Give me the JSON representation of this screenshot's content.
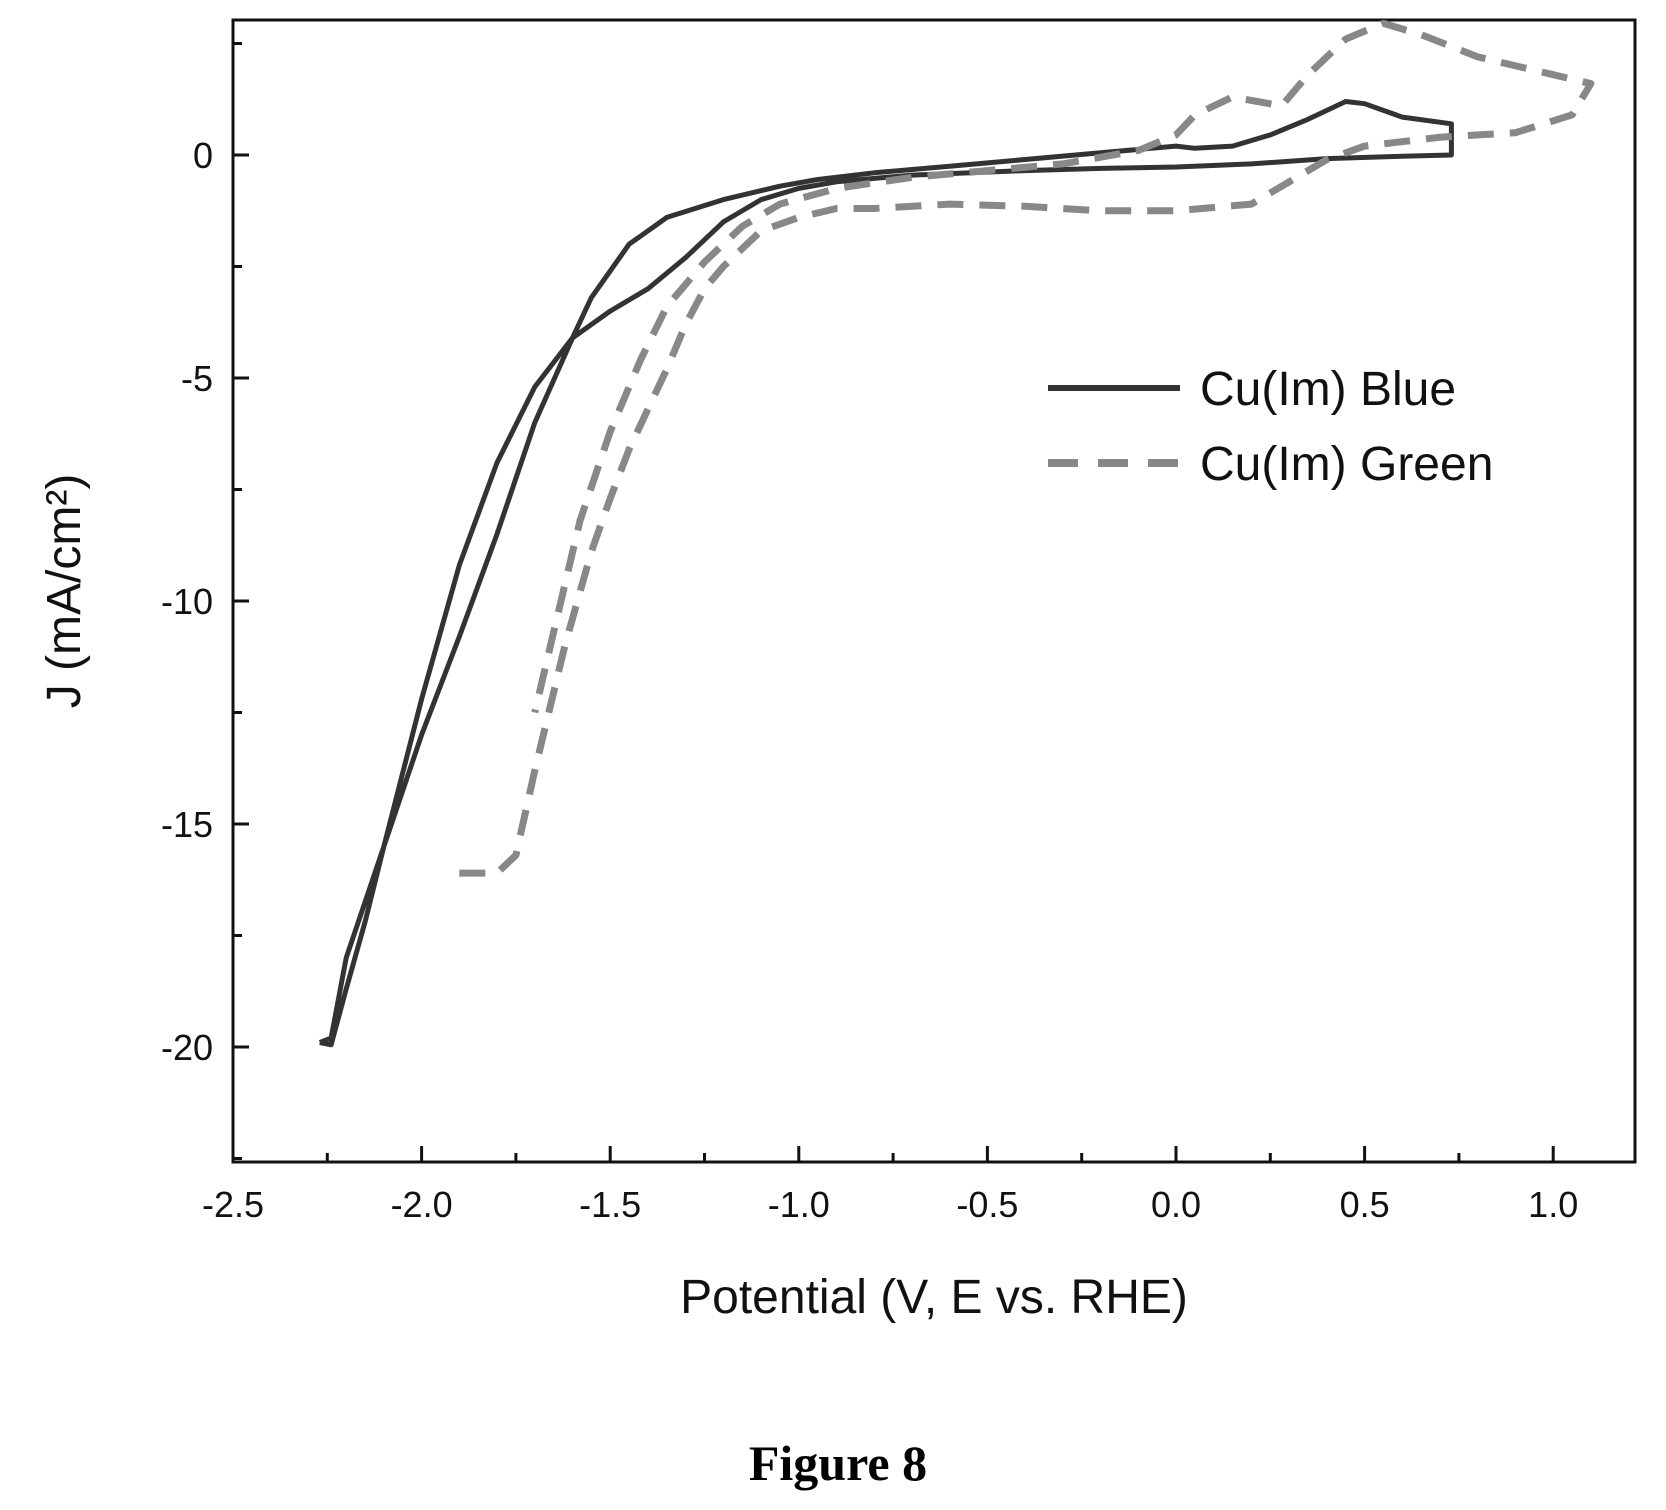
{
  "chart_data": {
    "type": "line",
    "xlabel": "Potential (V, E vs. RHE)",
    "ylabel": "J (mA/cm²)",
    "xlim": [
      -2.5,
      1.25
    ],
    "ylim": [
      -22.5,
      2.9
    ],
    "x_ticks": [
      "-2.5",
      "-2.0",
      "-1.5",
      "-1.0",
      "-0.5",
      "0.0",
      "0.5",
      "1.0"
    ],
    "y_ticks": [
      "0",
      "-5",
      "-10",
      "-15",
      "-20"
    ],
    "grid": false,
    "legend_position": "right",
    "series": [
      {
        "name": "Cu(Im) Blue",
        "style": "solid",
        "color": "#333333",
        "points": [
          [
            -2.27,
            -19.9
          ],
          [
            -2.24,
            -19.95
          ],
          [
            -2.2,
            -18.7
          ],
          [
            -2.15,
            -17.2
          ],
          [
            -2.1,
            -15.5
          ],
          [
            -2.0,
            -12.2
          ],
          [
            -1.9,
            -9.2
          ],
          [
            -1.8,
            -6.9
          ],
          [
            -1.7,
            -5.2
          ],
          [
            -1.6,
            -4.1
          ],
          [
            -1.5,
            -3.5
          ],
          [
            -1.4,
            -3.0
          ],
          [
            -1.3,
            -2.3
          ],
          [
            -1.2,
            -1.5
          ],
          [
            -1.1,
            -1.0
          ],
          [
            -1.0,
            -0.75
          ],
          [
            -0.9,
            -0.6
          ],
          [
            -0.7,
            -0.45
          ],
          [
            -0.4,
            -0.35
          ],
          [
            -0.2,
            -0.3
          ],
          [
            0.0,
            -0.27
          ],
          [
            0.2,
            -0.2
          ],
          [
            0.4,
            -0.08
          ],
          [
            0.6,
            -0.03
          ],
          [
            0.73,
            0.0
          ],
          [
            0.73,
            0.7
          ],
          [
            0.6,
            0.85
          ],
          [
            0.5,
            1.15
          ],
          [
            0.45,
            1.2
          ],
          [
            0.35,
            0.8
          ],
          [
            0.25,
            0.45
          ],
          [
            0.15,
            0.2
          ],
          [
            0.05,
            0.15
          ],
          [
            0.0,
            0.2
          ],
          [
            -0.2,
            0.05
          ],
          [
            -0.4,
            -0.1
          ],
          [
            -0.6,
            -0.25
          ],
          [
            -0.8,
            -0.4
          ],
          [
            -0.95,
            -0.55
          ],
          [
            -1.05,
            -0.7
          ],
          [
            -1.2,
            -1.0
          ],
          [
            -1.35,
            -1.4
          ],
          [
            -1.45,
            -2.0
          ],
          [
            -1.5,
            -2.6
          ],
          [
            -1.55,
            -3.2
          ],
          [
            -1.6,
            -4.1
          ],
          [
            -1.7,
            -6.0
          ],
          [
            -1.8,
            -8.5
          ],
          [
            -1.9,
            -10.8
          ],
          [
            -2.0,
            -13.0
          ],
          [
            -2.1,
            -15.5
          ],
          [
            -2.2,
            -18.0
          ],
          [
            -2.24,
            -19.8
          ],
          [
            -2.27,
            -19.9
          ]
        ]
      },
      {
        "name": "Cu(Im) Green",
        "style": "dashed",
        "color": "#888888",
        "points": [
          [
            -1.9,
            -16.1
          ],
          [
            -1.8,
            -16.1
          ],
          [
            -1.75,
            -15.7
          ],
          [
            -1.7,
            -13.8
          ],
          [
            -1.62,
            -11.0
          ],
          [
            -1.55,
            -8.9
          ],
          [
            -1.5,
            -7.7
          ],
          [
            -1.45,
            -6.6
          ],
          [
            -1.4,
            -5.7
          ],
          [
            -1.35,
            -4.8
          ],
          [
            -1.3,
            -3.8
          ],
          [
            -1.25,
            -3.0
          ],
          [
            -1.2,
            -2.5
          ],
          [
            -1.1,
            -1.7
          ],
          [
            -1.0,
            -1.4
          ],
          [
            -0.9,
            -1.2
          ],
          [
            -0.8,
            -1.2
          ],
          [
            -0.6,
            -1.1
          ],
          [
            -0.4,
            -1.15
          ],
          [
            -0.2,
            -1.25
          ],
          [
            0.0,
            -1.25
          ],
          [
            0.2,
            -1.1
          ],
          [
            0.3,
            -0.6
          ],
          [
            0.4,
            -0.1
          ],
          [
            0.5,
            0.2
          ],
          [
            0.7,
            0.4
          ],
          [
            0.9,
            0.5
          ],
          [
            1.05,
            0.9
          ],
          [
            1.1,
            1.6
          ],
          [
            1.0,
            1.8
          ],
          [
            0.8,
            2.2
          ],
          [
            0.65,
            2.7
          ],
          [
            0.55,
            2.95
          ],
          [
            0.45,
            2.6
          ],
          [
            0.35,
            1.8
          ],
          [
            0.28,
            1.1
          ],
          [
            0.15,
            1.3
          ],
          [
            0.05,
            0.9
          ],
          [
            0.0,
            0.45
          ],
          [
            -0.1,
            0.1
          ],
          [
            -0.3,
            -0.2
          ],
          [
            -0.5,
            -0.35
          ],
          [
            -0.7,
            -0.5
          ],
          [
            -0.9,
            -0.75
          ],
          [
            -1.05,
            -1.1
          ],
          [
            -1.15,
            -1.6
          ],
          [
            -1.25,
            -2.4
          ],
          [
            -1.35,
            -3.4
          ],
          [
            -1.42,
            -4.6
          ],
          [
            -1.5,
            -6.2
          ],
          [
            -1.58,
            -8.2
          ],
          [
            -1.65,
            -10.7
          ],
          [
            -1.7,
            -12.5
          ]
        ]
      }
    ]
  },
  "figure_caption": "Figure 8"
}
